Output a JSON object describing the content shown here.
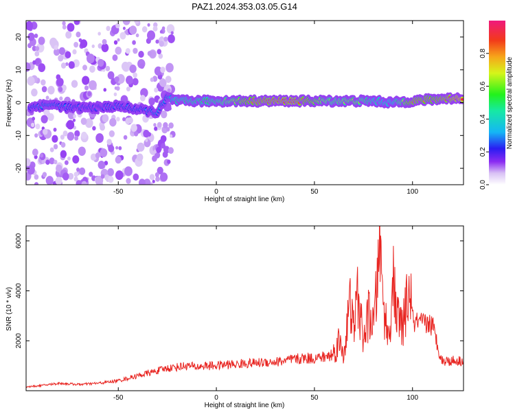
{
  "title": "PAZ1.2024.353.03.05.G14",
  "chart_data": [
    {
      "type": "heatmap",
      "xlabel": "Height of straight line (km)",
      "ylabel": "Frequency (Hz)",
      "xlim": [
        -97,
        126
      ],
      "ylim": [
        -25,
        25
      ],
      "x_ticks": [
        -50,
        0,
        50,
        100
      ],
      "y_ticks": [
        -20,
        -10,
        0,
        10,
        20
      ],
      "colorbar": {
        "label": "Normalized spectral amplitude",
        "range": [
          0,
          1
        ],
        "ticks": [
          0.0,
          0.2,
          0.4,
          0.6,
          0.8
        ]
      },
      "ridge": [
        {
          "x": -95,
          "y": -1.5,
          "amp": 0.3
        },
        {
          "x": -85,
          "y": -0.5,
          "amp": 0.35
        },
        {
          "x": -75,
          "y": -1.5,
          "amp": 0.3
        },
        {
          "x": -60,
          "y": -1.5,
          "amp": 0.25
        },
        {
          "x": -50,
          "y": -1.0,
          "amp": 0.3
        },
        {
          "x": -40,
          "y": -2.0,
          "amp": 0.3
        },
        {
          "x": -30,
          "y": -3.0,
          "amp": 0.35
        },
        {
          "x": -25,
          "y": 1.5,
          "amp": 0.35
        },
        {
          "x": -20,
          "y": 0.5,
          "amp": 0.5
        },
        {
          "x": 0,
          "y": 0.5,
          "amp": 0.55
        },
        {
          "x": 20,
          "y": 0.5,
          "amp": 0.85
        },
        {
          "x": 40,
          "y": 0.5,
          "amp": 0.9
        },
        {
          "x": 50,
          "y": 0.5,
          "amp": 0.75
        },
        {
          "x": 60,
          "y": 0.5,
          "amp": 0.6
        },
        {
          "x": 70,
          "y": 0.5,
          "amp": 0.7
        },
        {
          "x": 80,
          "y": 0.5,
          "amp": 0.5
        },
        {
          "x": 90,
          "y": 0.0,
          "amp": 0.45
        },
        {
          "x": 100,
          "y": 0.5,
          "amp": 0.85
        },
        {
          "x": 110,
          "y": 1.0,
          "amp": 0.8
        },
        {
          "x": 126,
          "y": 1.5,
          "amp": 0.95
        }
      ]
    },
    {
      "type": "line",
      "xlabel": "Height of straight line (km)",
      "ylabel": "SNR (10 * v/v)",
      "xlim": [
        -97,
        126
      ],
      "ylim": [
        0,
        6600
      ],
      "x_ticks": [
        -50,
        0,
        50,
        100
      ],
      "y_ticks": [
        2000,
        4000,
        6000
      ],
      "series": [
        {
          "color": "#e8231f",
          "x": [
            -97,
            -90,
            -80,
            -70,
            -60,
            -50,
            -45,
            -40,
            -35,
            -30,
            -25,
            -20,
            -15,
            -10,
            -5,
            0,
            5,
            10,
            15,
            20,
            25,
            30,
            35,
            40,
            45,
            50,
            55,
            58,
            60,
            62,
            65,
            68,
            70,
            72,
            75,
            78,
            80,
            82,
            83,
            85,
            88,
            90,
            92,
            95,
            97,
            99,
            100,
            102,
            105,
            108,
            110,
            115,
            120,
            126
          ],
          "y": [
            150,
            200,
            300,
            250,
            300,
            400,
            500,
            600,
            700,
            800,
            900,
            950,
            1000,
            950,
            1000,
            1000,
            1050,
            1050,
            1100,
            1100,
            1150,
            1150,
            1200,
            1250,
            1300,
            1300,
            1350,
            1400,
            1500,
            2000,
            1500,
            3500,
            2500,
            3800,
            2000,
            3200,
            2500,
            4200,
            6500,
            3500,
            2000,
            4500,
            3000,
            2500,
            3500,
            4000,
            2800,
            2700,
            2650,
            2700,
            2650,
            1200,
            1200,
            1200
          ]
        }
      ]
    }
  ]
}
